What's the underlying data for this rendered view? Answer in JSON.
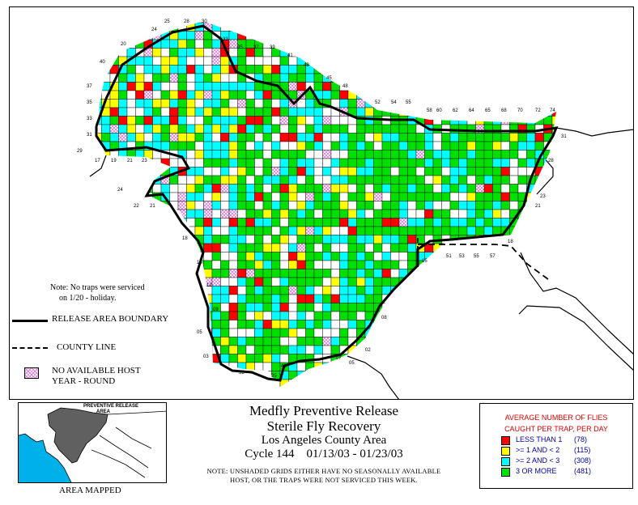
{
  "title": {
    "line1": "Medfly Preventive Release",
    "line2": "Sterile Fly Recovery",
    "line3": "Los Angeles County Area",
    "line4": "Cycle 144    01/13/03 - 01/23/03"
  },
  "footnote": {
    "line1": "NOTE: UNSHADED GRIDS EITHER HAVE NO SEASONALLY AVAILABLE",
    "line2": "HOST, OR THE TRAPS WERE NOT SERVICED THIS WEEK."
  },
  "note": {
    "line1": "Note: No traps were serviced",
    "line2": "on 1/20 - holiday."
  },
  "map_legend": {
    "release_boundary": "RELEASE AREA BOUNDARY",
    "county_line": "COUNTY LINE",
    "no_host_line1": "NO AVAILABLE HOST",
    "no_host_line2": "YEAR - ROUND"
  },
  "inset": {
    "label_line1": "PREVENTIVE RELEASE",
    "label_line2": "AREA",
    "caption": "AREA MAPPED"
  },
  "key": {
    "title_line1": "AVERAGE NUMBER OF FLIES",
    "title_line2": "CAUGHT PER TRAP, PER DAY",
    "items": [
      {
        "label": "LESS THAN 1",
        "count": "(78)",
        "color": "#ff0000"
      },
      {
        "label": ">= 1 AND < 2",
        "count": "(115)",
        "color": "#ffff00"
      },
      {
        "label": ">= 2 AND < 3",
        "count": "(308)",
        "color": "#00ffff"
      },
      {
        "label": "3 OR MORE",
        "count": "(481)",
        "color": "#00e000"
      }
    ]
  },
  "colors": {
    "red": "#ff0000",
    "yellow": "#ffff00",
    "cyan": "#00ffff",
    "green": "#00e000",
    "no_host": "#d97ad9",
    "inset_water": "#00b0e8",
    "inset_area": "#606060"
  },
  "grid_labels": {
    "top": [
      "25",
      "28",
      "30",
      "24",
      "20",
      "33",
      "35",
      "37",
      "39",
      "41",
      "43",
      "45",
      "48",
      "52",
      "54",
      "55",
      "58",
      "60",
      "62",
      "64",
      "65",
      "68",
      "70",
      "72",
      "74"
    ],
    "left": [
      "40",
      "37",
      "35",
      "33",
      "31",
      "29",
      "17",
      "19",
      "21",
      "23",
      "24",
      "22",
      "21",
      "18",
      "15",
      "12",
      "09",
      "05",
      "03"
    ],
    "right": [
      "31",
      "28",
      "23",
      "21",
      "18"
    ],
    "bottom": [
      "51",
      "53",
      "55",
      "57",
      "15",
      "08",
      "02",
      "05",
      "07",
      "43",
      "33",
      "35"
    ]
  }
}
